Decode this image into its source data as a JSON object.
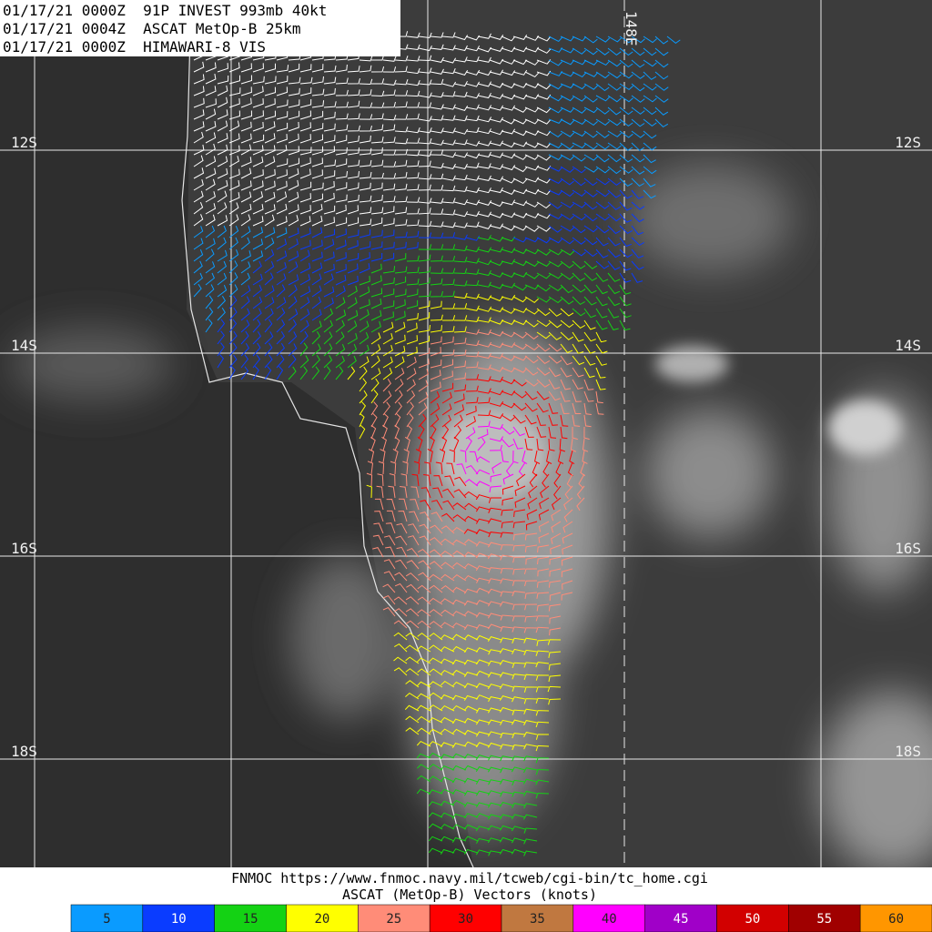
{
  "header": {
    "lines": [
      "01/17/21 0000Z  91P INVEST 993mb 40kt",
      "01/17/21 0004Z  ASCAT MetOp-B 25km",
      "01/17/21 0000Z  HIMAWARI-8 VIS"
    ]
  },
  "grid": {
    "lat_labels": [
      "12S",
      "14S",
      "16S",
      "18S"
    ],
    "lon_labels": [
      "148E"
    ]
  },
  "footer": {
    "lines": [
      "FNMOC https://www.fnmoc.navy.mil/tcweb/cgi-bin/tc_home.cgi",
      "ASCAT (MetOp-B) Vectors (knots)"
    ]
  },
  "legend": {
    "items": [
      {
        "label": 5,
        "color": "#0a9bff"
      },
      {
        "label": 10,
        "color": "#0a3cff"
      },
      {
        "label": 15,
        "color": "#14d214"
      },
      {
        "label": 20,
        "color": "#ffff00"
      },
      {
        "label": 25,
        "color": "#ff8c78"
      },
      {
        "label": 30,
        "color": "#ff0000"
      },
      {
        "label": 35,
        "color": "#c07840"
      },
      {
        "label": 40,
        "color": "#ff00ff"
      },
      {
        "label": 45,
        "color": "#a000c8"
      },
      {
        "label": 50,
        "color": "#d20000"
      },
      {
        "label": 55,
        "color": "#a00000"
      },
      {
        "label": 60,
        "color": "#ff9600"
      }
    ]
  }
}
